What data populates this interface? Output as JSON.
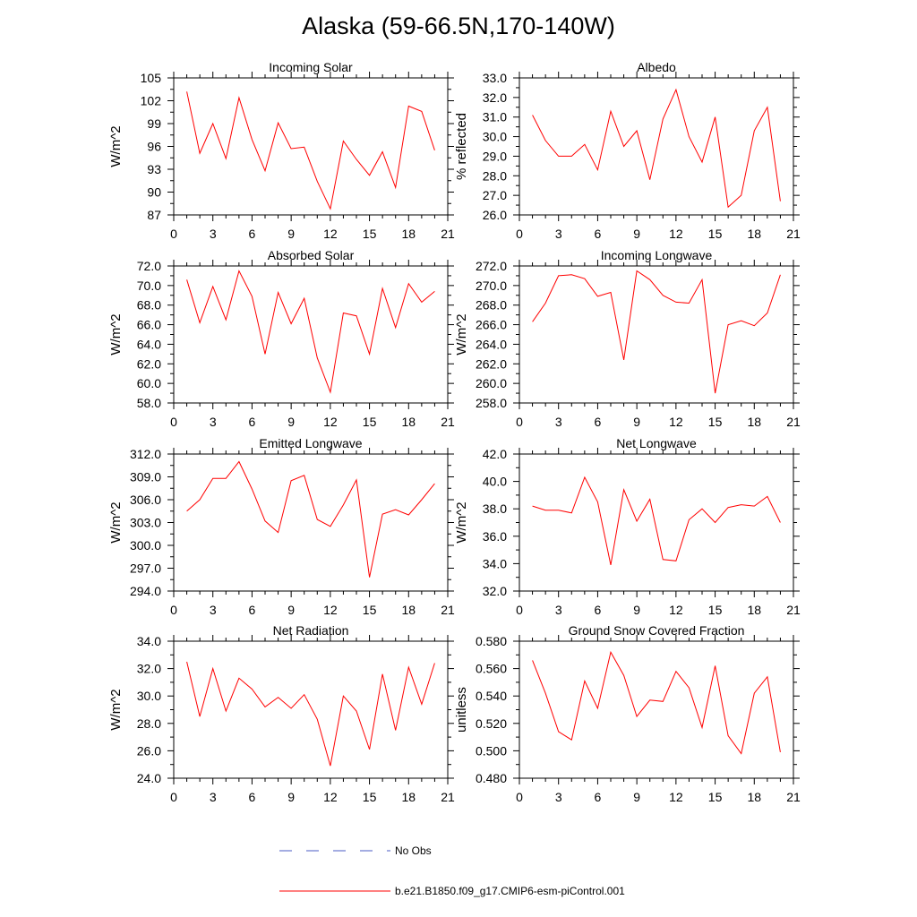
{
  "title": "Alaska (59-66.5N,170-140W)",
  "legend": {
    "obs_label": "No Obs",
    "model_label": "b.e21.B1850.f09_g17.CMIP6-esm-piControl.001",
    "obs_color": "#4a5bc4",
    "model_color": "#ff0000"
  },
  "chart_data": [
    {
      "type": "line",
      "title": "Incoming Solar",
      "ylabel": "W/m^2",
      "xlim": [
        0,
        21
      ],
      "ylim": [
        87,
        105
      ],
      "xticks": [
        "0",
        "3",
        "6",
        "9",
        "12",
        "15",
        "18",
        "21"
      ],
      "yticks": [
        "87",
        "90",
        "93",
        "96",
        "99",
        "102",
        "105"
      ],
      "x": [
        1,
        2,
        3,
        4,
        5,
        6,
        7,
        8,
        9,
        10,
        11,
        12,
        13,
        14,
        15,
        16,
        17,
        18,
        19,
        20
      ],
      "values": [
        103.2,
        95.1,
        99.0,
        94.4,
        102.4,
        96.9,
        92.8,
        99.1,
        95.7,
        95.9,
        91.4,
        87.8,
        96.7,
        94.3,
        92.2,
        95.3,
        90.6,
        101.3,
        100.6,
        95.5
      ]
    },
    {
      "type": "line",
      "title": "Albedo",
      "ylabel": "% reflected",
      "xlim": [
        0,
        21
      ],
      "ylim": [
        26.0,
        33.0
      ],
      "xticks": [
        "0",
        "3",
        "6",
        "9",
        "12",
        "15",
        "18",
        "21"
      ],
      "yticks": [
        "26.0",
        "27.0",
        "28.0",
        "29.0",
        "30.0",
        "31.0",
        "32.0",
        "33.0"
      ],
      "x": [
        1,
        2,
        3,
        4,
        5,
        6,
        7,
        8,
        9,
        10,
        11,
        12,
        13,
        14,
        15,
        16,
        17,
        18,
        19,
        20
      ],
      "values": [
        31.1,
        29.8,
        29.0,
        29.0,
        29.6,
        28.3,
        31.3,
        29.5,
        30.3,
        27.8,
        30.9,
        32.4,
        30.0,
        28.7,
        31.0,
        26.4,
        27.0,
        30.3,
        31.5,
        26.7
      ]
    },
    {
      "type": "line",
      "title": "Absorbed Solar",
      "ylabel": "W/m^2",
      "xlim": [
        0,
        21
      ],
      "ylim": [
        58.0,
        72.0
      ],
      "xticks": [
        "0",
        "3",
        "6",
        "9",
        "12",
        "15",
        "18",
        "21"
      ],
      "yticks": [
        "58.0",
        "60.0",
        "62.0",
        "64.0",
        "66.0",
        "68.0",
        "70.0",
        "72.0"
      ],
      "x": [
        1,
        2,
        3,
        4,
        5,
        6,
        7,
        8,
        9,
        10,
        11,
        12,
        13,
        14,
        15,
        16,
        17,
        18,
        19,
        20
      ],
      "values": [
        70.6,
        66.2,
        69.9,
        66.5,
        71.5,
        68.9,
        63.0,
        69.3,
        66.1,
        68.7,
        62.6,
        59.1,
        67.2,
        66.9,
        63.0,
        69.7,
        65.7,
        70.2,
        68.3,
        69.4
      ]
    },
    {
      "type": "line",
      "title": "Incoming Longwave",
      "ylabel": "W/m^2",
      "xlim": [
        0,
        21
      ],
      "ylim": [
        258.0,
        272.0
      ],
      "xticks": [
        "0",
        "3",
        "6",
        "9",
        "12",
        "15",
        "18",
        "21"
      ],
      "yticks": [
        "258.0",
        "260.0",
        "262.0",
        "264.0",
        "266.0",
        "268.0",
        "270.0",
        "272.0"
      ],
      "x": [
        1,
        2,
        3,
        4,
        5,
        6,
        7,
        8,
        9,
        10,
        11,
        12,
        13,
        14,
        15,
        16,
        17,
        18,
        19,
        20
      ],
      "values": [
        266.3,
        268.2,
        271.0,
        271.1,
        270.7,
        268.9,
        269.3,
        262.4,
        271.5,
        270.6,
        269.0,
        268.3,
        268.2,
        270.6,
        259.0,
        266.0,
        266.4,
        265.9,
        267.2,
        271.1
      ]
    },
    {
      "type": "line",
      "title": "Emitted Longwave",
      "ylabel": "W/m^2",
      "xlim": [
        0,
        21
      ],
      "ylim": [
        294.0,
        312.0
      ],
      "xticks": [
        "0",
        "3",
        "6",
        "9",
        "12",
        "15",
        "18",
        "21"
      ],
      "yticks": [
        "294.0",
        "297.0",
        "300.0",
        "303.0",
        "306.0",
        "309.0",
        "312.0"
      ],
      "x": [
        1,
        2,
        3,
        4,
        5,
        6,
        7,
        8,
        9,
        10,
        11,
        12,
        13,
        14,
        15,
        16,
        17,
        18,
        19,
        20
      ],
      "values": [
        304.5,
        306.0,
        308.8,
        308.8,
        311.0,
        307.4,
        303.2,
        301.7,
        308.5,
        309.2,
        303.4,
        302.5,
        305.3,
        308.6,
        295.8,
        304.1,
        304.7,
        304.0,
        306.0,
        308.1
      ]
    },
    {
      "type": "line",
      "title": "Net Longwave",
      "ylabel": "W/m^2",
      "xlim": [
        0,
        21
      ],
      "ylim": [
        32.0,
        42.0
      ],
      "xticks": [
        "0",
        "3",
        "6",
        "9",
        "12",
        "15",
        "18",
        "21"
      ],
      "yticks": [
        "32.0",
        "34.0",
        "36.0",
        "38.0",
        "40.0",
        "42.0"
      ],
      "x": [
        1,
        2,
        3,
        4,
        5,
        6,
        7,
        8,
        9,
        10,
        11,
        12,
        13,
        14,
        15,
        16,
        17,
        18,
        19,
        20
      ],
      "values": [
        38.2,
        37.9,
        37.9,
        37.7,
        40.3,
        38.5,
        33.9,
        39.4,
        37.1,
        38.7,
        34.3,
        34.2,
        37.2,
        38.0,
        37.0,
        38.1,
        38.3,
        38.2,
        38.9,
        37.0
      ]
    },
    {
      "type": "line",
      "title": "Net Radiation",
      "ylabel": "W/m^2",
      "xlim": [
        0,
        21
      ],
      "ylim": [
        24.0,
        34.0
      ],
      "xticks": [
        "0",
        "3",
        "6",
        "9",
        "12",
        "15",
        "18",
        "21"
      ],
      "yticks": [
        "24.0",
        "26.0",
        "28.0",
        "30.0",
        "32.0",
        "34.0"
      ],
      "x": [
        1,
        2,
        3,
        4,
        5,
        6,
        7,
        8,
        9,
        10,
        11,
        12,
        13,
        14,
        15,
        16,
        17,
        18,
        19,
        20
      ],
      "values": [
        32.5,
        28.5,
        32.0,
        28.9,
        31.3,
        30.5,
        29.2,
        29.9,
        29.1,
        30.1,
        28.3,
        24.9,
        30.0,
        28.9,
        26.1,
        31.6,
        27.5,
        32.1,
        29.4,
        32.4
      ]
    },
    {
      "type": "line",
      "title": "Ground Snow Covered Fraction",
      "ylabel": "unitless",
      "xlim": [
        0,
        21
      ],
      "ylim": [
        0.48,
        0.58
      ],
      "xticks": [
        "0",
        "3",
        "6",
        "9",
        "12",
        "15",
        "18",
        "21"
      ],
      "yticks": [
        "0.480",
        "0.500",
        "0.520",
        "0.540",
        "0.560",
        "0.580"
      ],
      "x": [
        1,
        2,
        3,
        4,
        5,
        6,
        7,
        8,
        9,
        10,
        11,
        12,
        13,
        14,
        15,
        16,
        17,
        18,
        19,
        20
      ],
      "values": [
        0.566,
        0.542,
        0.514,
        0.508,
        0.551,
        0.531,
        0.572,
        0.555,
        0.525,
        0.537,
        0.536,
        0.558,
        0.546,
        0.517,
        0.562,
        0.511,
        0.498,
        0.542,
        0.554,
        0.499
      ]
    }
  ]
}
